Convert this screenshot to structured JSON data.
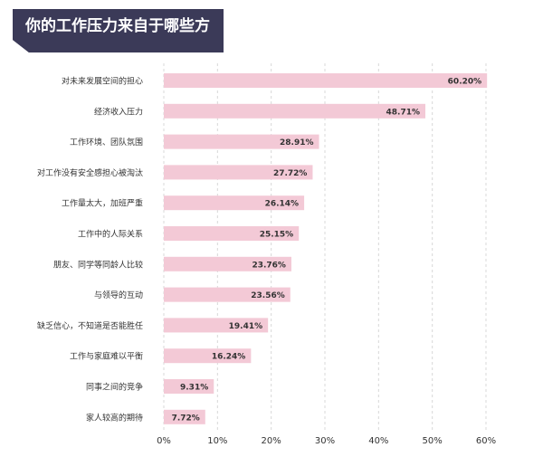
{
  "title": "你的工作压力来自于哪些方面?",
  "colors": {
    "banner": "#3b3a58",
    "bar": "#f3c9d6",
    "grid": "#d8d8d8",
    "text": "#333333"
  },
  "chart_data": {
    "type": "bar",
    "orientation": "horizontal",
    "title": "你的工作压力来自于哪些方面?",
    "categories": [
      "对未来发展空间的担心",
      "经济收入压力",
      "工作环境、团队氛围",
      "对工作没有安全感担心被淘汰",
      "工作量太大，加班严重",
      "工作中的人际关系",
      "朋友、同学等同龄人比较",
      "与领导的互动",
      "缺乏信心，不知道是否能胜任",
      "工作与家庭难以平衡",
      "同事之间的竞争",
      "家人较高的期待"
    ],
    "values": [
      60.2,
      48.71,
      28.91,
      27.72,
      26.14,
      25.15,
      23.76,
      23.56,
      19.41,
      16.24,
      9.31,
      7.72
    ],
    "value_labels": [
      "60.20%",
      "48.71%",
      "28.91%",
      "27.72%",
      "26.14%",
      "25.15%",
      "23.76%",
      "23.56%",
      "19.41%",
      "16.24%",
      "9.31%",
      "7.72%"
    ],
    "xticks": [
      0,
      10,
      20,
      30,
      40,
      50,
      60
    ],
    "xtick_labels": [
      "0%",
      "10%",
      "20%",
      "30%",
      "40%",
      "50%",
      "60%"
    ],
    "xlim": [
      0,
      60
    ],
    "grid": true,
    "legend": false
  }
}
